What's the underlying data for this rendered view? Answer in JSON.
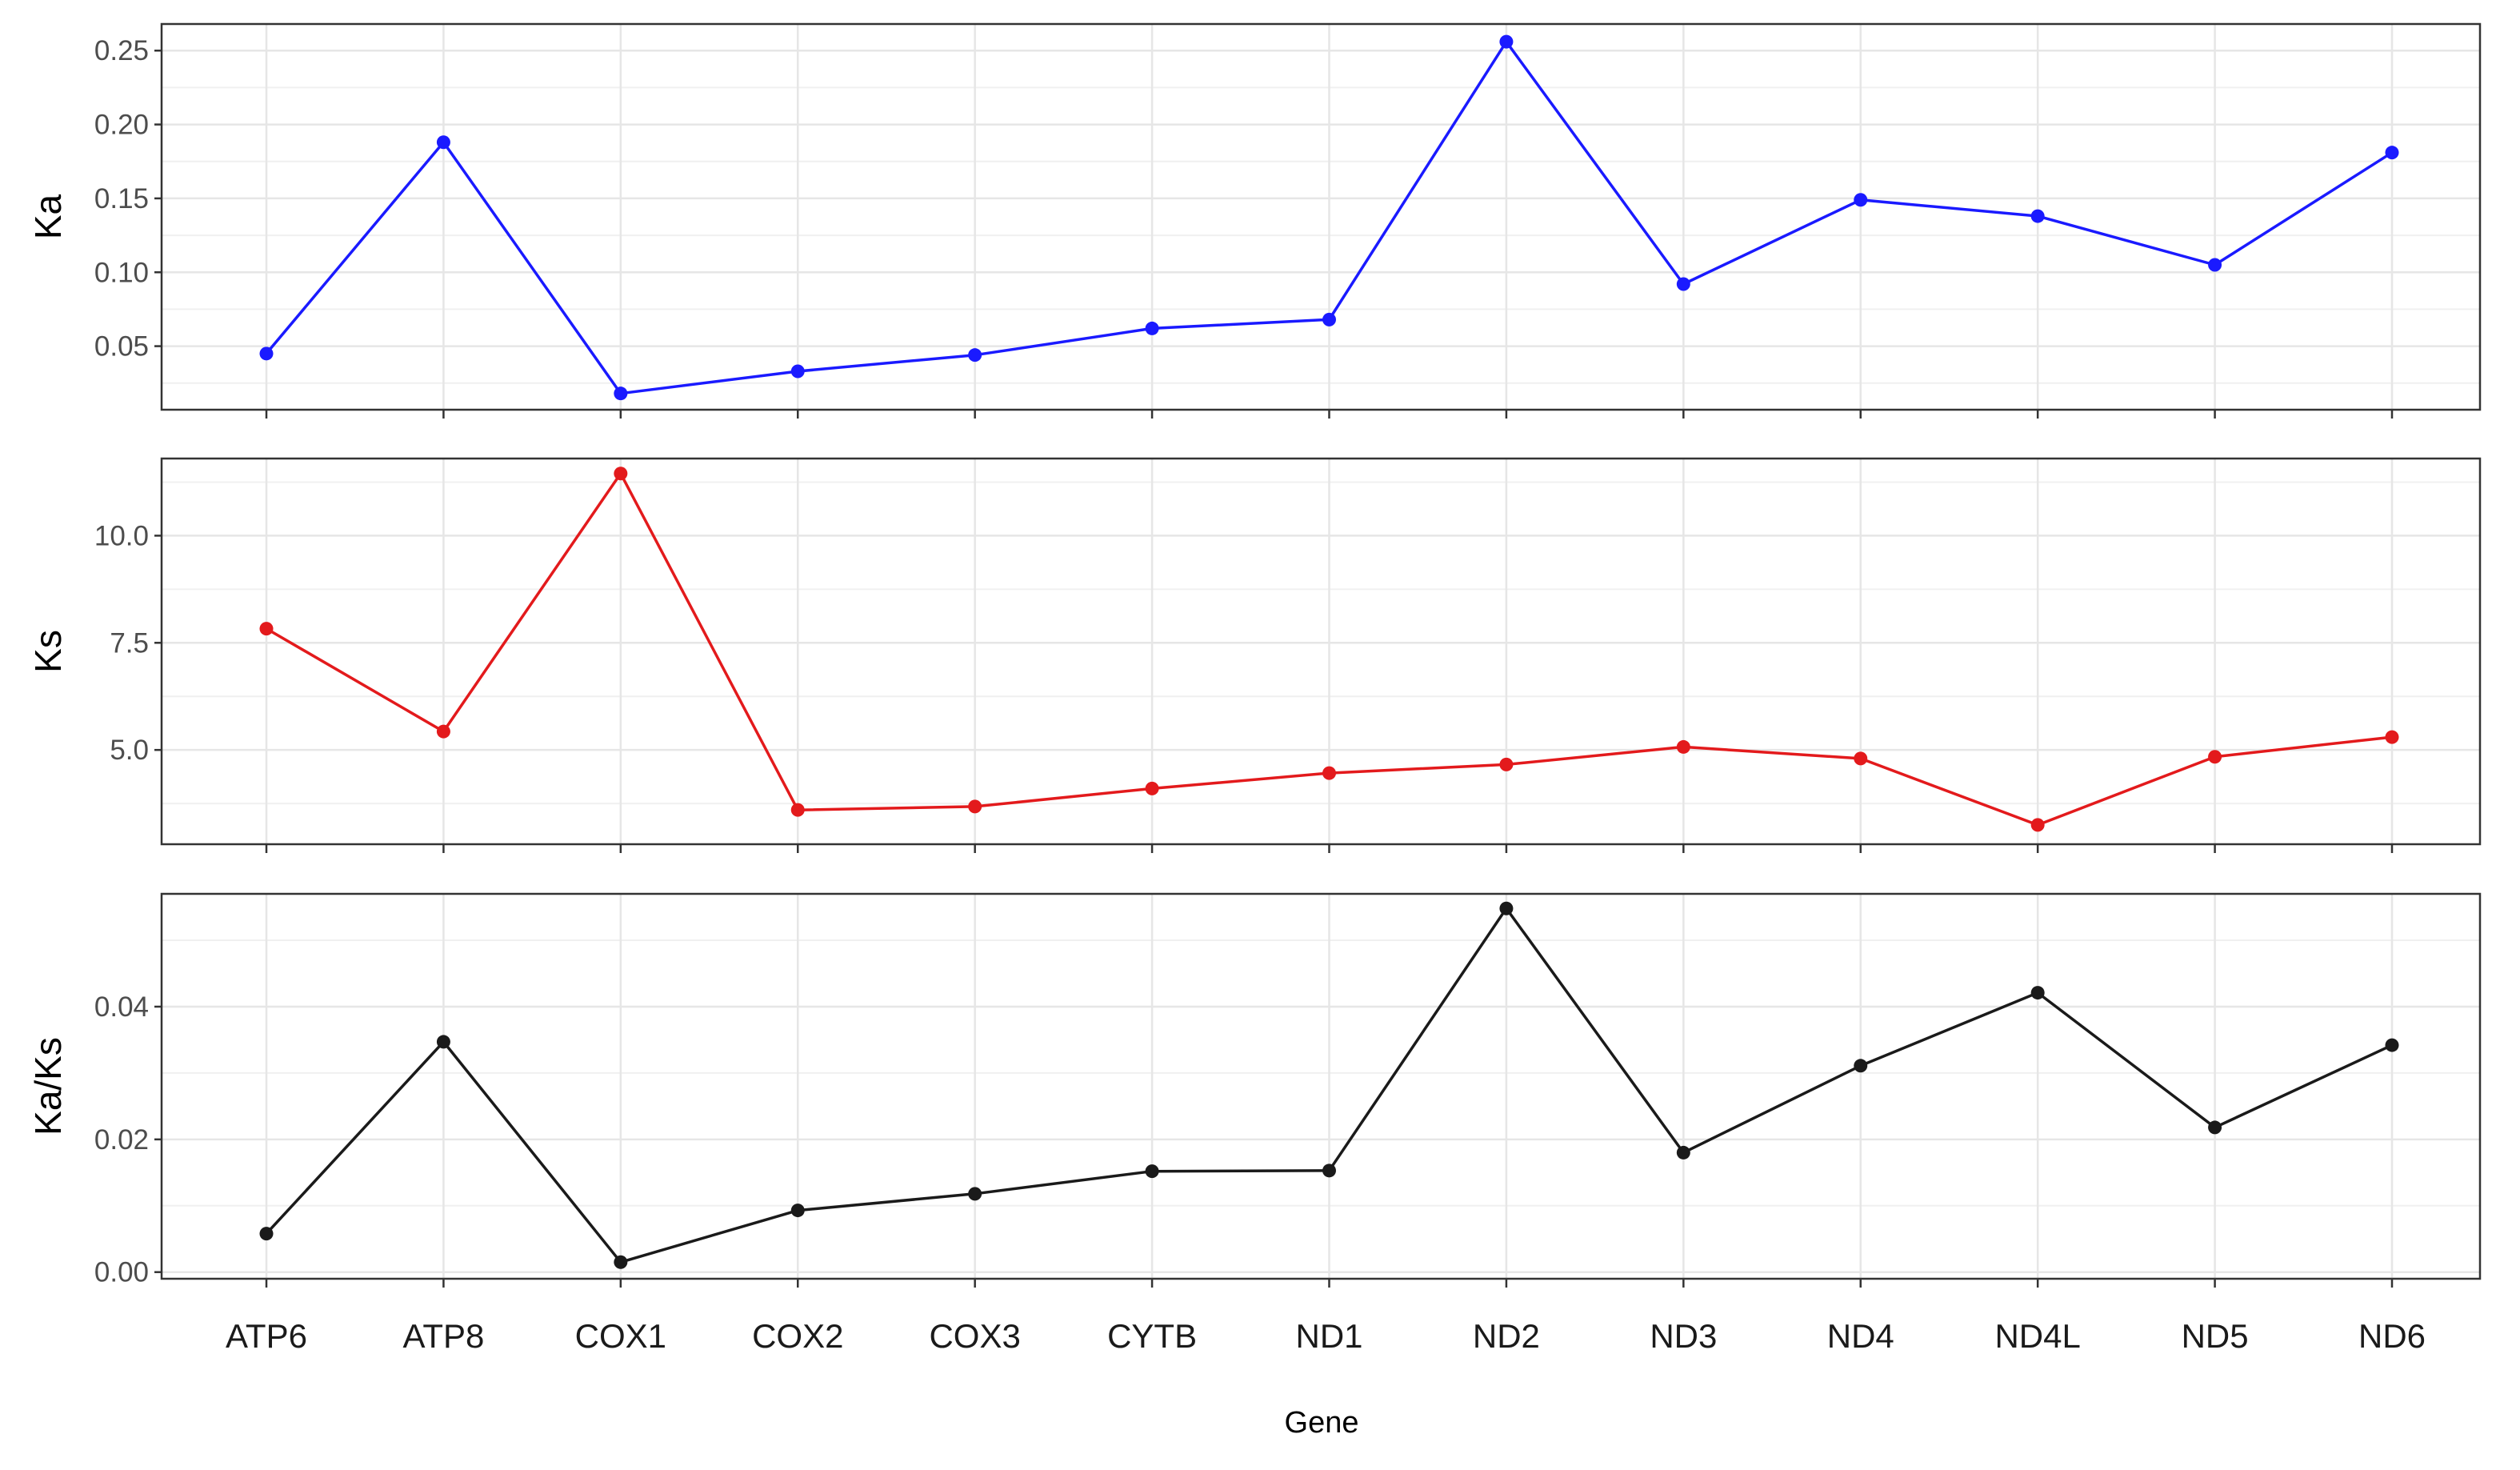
{
  "chart_data": {
    "type": "line",
    "xlabel": "Gene",
    "categories": [
      "ATP6",
      "ATP8",
      "COX1",
      "COX2",
      "COX3",
      "CYTB",
      "ND1",
      "ND2",
      "ND3",
      "ND4",
      "ND4L",
      "ND5",
      "ND6"
    ],
    "grid": true,
    "panels": [
      {
        "ylabel": "Ka",
        "color": "#1a1aff",
        "ylim": [
          0.007,
          0.268
        ],
        "yticks": [
          "0.05",
          "0.10",
          "0.15",
          "0.20",
          "0.25"
        ],
        "values": [
          0.045,
          0.188,
          0.018,
          0.033,
          0.044,
          0.062,
          0.068,
          0.256,
          0.092,
          0.149,
          0.138,
          0.105,
          0.181
        ]
      },
      {
        "ylabel": "Ks",
        "color": "#e31a1c",
        "ylim": [
          2.8,
          11.8
        ],
        "yticks": [
          "5.0",
          "7.5",
          "10.0"
        ],
        "values": [
          7.83,
          5.43,
          11.45,
          3.6,
          3.68,
          4.1,
          4.46,
          4.66,
          5.07,
          4.8,
          3.25,
          4.84,
          5.3
        ]
      },
      {
        "ylabel": "Ka/Ks",
        "color": "#1a1a1a",
        "ylim": [
          -0.001,
          0.057
        ],
        "yticks": [
          "0.00",
          "0.02",
          "0.04"
        ],
        "values": [
          0.0058,
          0.0347,
          0.0015,
          0.0093,
          0.0118,
          0.0152,
          0.0153,
          0.0548,
          0.018,
          0.0311,
          0.0421,
          0.0218,
          0.0342
        ]
      }
    ]
  }
}
